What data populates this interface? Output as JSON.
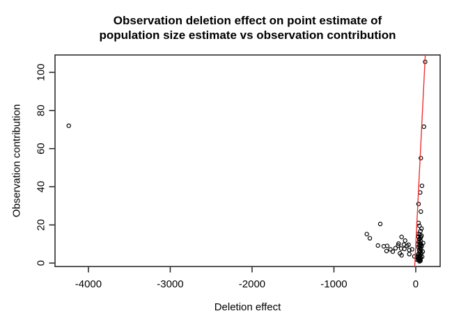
{
  "title": {
    "line1": "Observation deletion effect on point estimate of",
    "line2": "population size estimate vs observation contribution"
  },
  "chart_data": {
    "type": "scatter",
    "title": "Observation deletion effect on point estimate of population size estimate vs observation contribution",
    "xlabel": "Deletion effect",
    "ylabel": "Observation contribution",
    "xlim": [
      -4408,
      298
    ],
    "ylim": [
      -1.8,
      109.1
    ],
    "x_ticks": [
      -4000,
      -3000,
      -2000,
      -1000,
      0
    ],
    "y_ticks": [
      0,
      20,
      40,
      60,
      80,
      100
    ],
    "grid": false,
    "legend_position": "none",
    "marker": "open-circle",
    "point_color": "#000000",
    "axis_color": "#1f1f1f",
    "fit_line": {
      "color": "#ee2f2f",
      "points": [
        [
          -12.8,
          -1.8
        ],
        [
          116.3,
          109.1
        ]
      ]
    },
    "points": [
      [
        -4240,
        72
      ],
      [
        115,
        105.5
      ],
      [
        100,
        71.5
      ],
      [
        62,
        55
      ],
      [
        76,
        40.5
      ],
      [
        54,
        37
      ],
      [
        34,
        31
      ],
      [
        62,
        27
      ],
      [
        34,
        21
      ],
      [
        45,
        19.5
      ],
      [
        -434,
        20.5
      ],
      [
        -598,
        15.2
      ],
      [
        -561,
        13
      ],
      [
        -462,
        9.2
      ],
      [
        -391,
        8.8
      ],
      [
        -349,
        9
      ],
      [
        -357,
        6.3
      ],
      [
        -309,
        7.2
      ],
      [
        -281,
        6
      ],
      [
        -247,
        7.8
      ],
      [
        -215,
        9.2
      ],
      [
        -210,
        10.2
      ],
      [
        -193,
        5.1
      ],
      [
        -179,
        7.6
      ],
      [
        -173,
        13.7
      ],
      [
        -173,
        4.1
      ],
      [
        -145,
        9.7
      ],
      [
        -139,
        7.4
      ],
      [
        -130,
        11.8
      ],
      [
        -108,
        9
      ],
      [
        -88,
        9.6
      ],
      [
        -79,
        6.8
      ],
      [
        -79,
        4.7
      ],
      [
        -45,
        7.2
      ],
      [
        -17,
        3.5
      ],
      [
        70,
        18.1
      ],
      [
        58,
        16.8
      ],
      [
        31,
        15.3
      ],
      [
        48,
        15
      ],
      [
        70,
        14.4
      ],
      [
        63,
        13.6
      ],
      [
        52,
        13
      ],
      [
        44,
        12.4
      ],
      [
        60,
        11.6
      ],
      [
        38,
        11
      ],
      [
        55,
        10.4
      ],
      [
        66,
        9.8
      ],
      [
        47,
        9.3
      ],
      [
        58,
        8.7
      ],
      [
        36,
        8.2
      ],
      [
        52,
        7.7
      ],
      [
        64,
        7.2
      ],
      [
        42,
        6.7
      ],
      [
        56,
        6.2
      ],
      [
        48,
        5.7
      ],
      [
        68,
        5.2
      ],
      [
        38,
        4.9
      ],
      [
        60,
        4.4
      ],
      [
        50,
        4
      ],
      [
        30,
        4.6
      ],
      [
        44,
        3.6
      ],
      [
        56,
        3.2
      ],
      [
        36,
        2.9
      ],
      [
        62,
        2.6
      ],
      [
        48,
        2.3
      ],
      [
        28,
        2
      ],
      [
        54,
        1.8
      ],
      [
        40,
        1.5
      ],
      [
        58,
        1.2
      ],
      [
        46,
        0.9
      ],
      [
        20,
        3
      ],
      [
        14,
        1.8
      ],
      [
        25,
        9.9
      ],
      [
        33,
        13.9
      ],
      [
        90,
        10.5
      ],
      [
        85,
        6
      ],
      [
        78,
        3.3
      ],
      [
        74,
        8.9
      ]
    ]
  }
}
